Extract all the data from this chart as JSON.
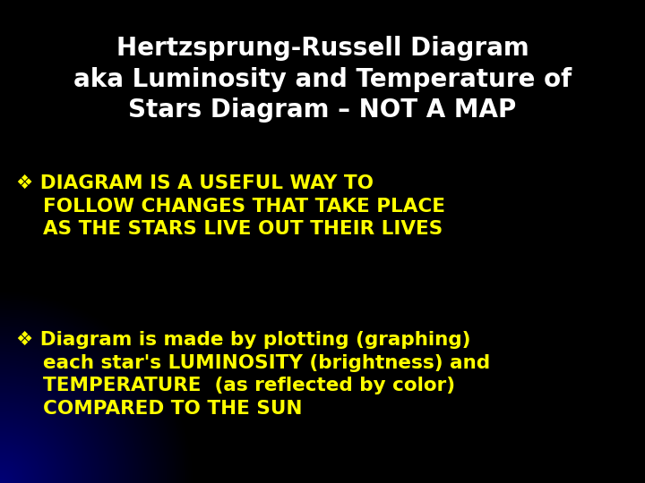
{
  "title_line1": "Hertzsprung-Russell Diagram",
  "title_line2": "aka Luminosity and Temperature of",
  "title_line3": "Stars Diagram – NOT A MAP",
  "title_color": "#ffffff",
  "title_fontsize": 20,
  "background_color": "#000000",
  "bullet_color": "#ffff00",
  "bullet_symbol": "❖",
  "bullet1_line1": "DIAGRAM IS A USEFUL WAY TO",
  "bullet1_line2": "FOLLOW CHANGES THAT TAKE PLACE",
  "bullet1_line3": "AS THE STARS LIVE OUT THEIR LIVES",
  "bullet1_fontsize": 15.5,
  "bullet2_line1": "Diagram is made by plotting (graphing)",
  "bullet2_line2": "each star's LUMINOSITY (brightness) and",
  "bullet2_line3": "TEMPERATURE  (as reflected by color)",
  "bullet2_line4": "COMPARED TO THE SUN",
  "bullet2_fontsize": 15.5
}
